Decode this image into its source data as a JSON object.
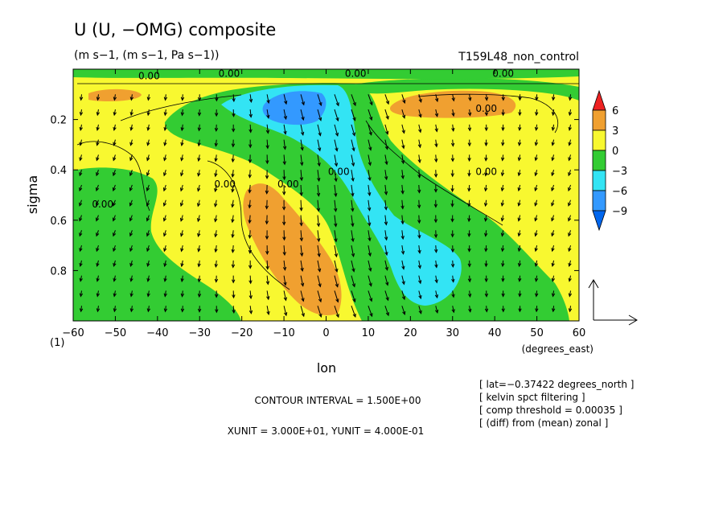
{
  "chart_data": {
    "type": "heatmap",
    "title": "U (U, −OMG) composite",
    "subtitle": "(m s−1, (m s−1, Pa s−1))",
    "run_label": "T159L48_non_control",
    "xlabel": "lon",
    "xunits": "(degrees_east)",
    "ylabel": "sigma",
    "corner_label": "(1)",
    "xlim": [
      -60,
      60
    ],
    "ylim": [
      1.0,
      0.0
    ],
    "y_inverted": true,
    "x_ticks": [
      "−60",
      "−50",
      "−40",
      "−30",
      "−20",
      "−10",
      "0",
      "10",
      "20",
      "30",
      "40",
      "50",
      "60"
    ],
    "x_tick_values": [
      -60,
      -50,
      -40,
      -30,
      -20,
      -10,
      0,
      10,
      20,
      30,
      40,
      50,
      60
    ],
    "y_ticks": [
      "0.2",
      "0.4",
      "0.6",
      "0.8"
    ],
    "y_tick_values": [
      0.2,
      0.4,
      0.6,
      0.8
    ],
    "contour_labels": [
      {
        "text": "0.00",
        "lon": -53,
        "sigma": 0.55
      },
      {
        "text": "0.00",
        "lon": -24,
        "sigma": 0.47
      },
      {
        "text": "0.00",
        "lon": -9,
        "sigma": 0.47
      },
      {
        "text": "0.00",
        "lon": 3,
        "sigma": 0.42
      },
      {
        "text": "0.00",
        "lon": 38,
        "sigma": 0.42
      },
      {
        "text": "0.00",
        "lon": 38,
        "sigma": 0.17
      },
      {
        "text": "0.00",
        "lon": -42,
        "sigma": 0.04
      },
      {
        "text": "0.00",
        "lon": -23,
        "sigma": 0.03
      },
      {
        "text": "0.00",
        "lon": 7,
        "sigma": 0.03
      },
      {
        "text": "0.00",
        "lon": 42,
        "sigma": 0.03
      }
    ],
    "colorbar": {
      "levels": [
        "6",
        "3",
        "0",
        "−3",
        "−6",
        "−9"
      ],
      "colors": [
        "#ee2222",
        "#f0a030",
        "#f8f830",
        "#33cc33",
        "#33e4f4",
        "#3399ff",
        "#0066ee"
      ]
    },
    "vector_ref": {
      "xunit": 30.0,
      "yunit": 0.4
    },
    "annotations": {
      "contour_interval": "CONTOUR INTERVAL = 1.500E+00",
      "units": "XUNIT = 3.000E+01, YUNIT = 4.000E-01",
      "notes": [
        "[ lat=−0.37422 degrees_north ]",
        "[ kelvin spct filtering ]",
        "[ comp threshold = 0.00035 ]",
        "[ (diff) from (mean) zonal ]"
      ]
    }
  }
}
